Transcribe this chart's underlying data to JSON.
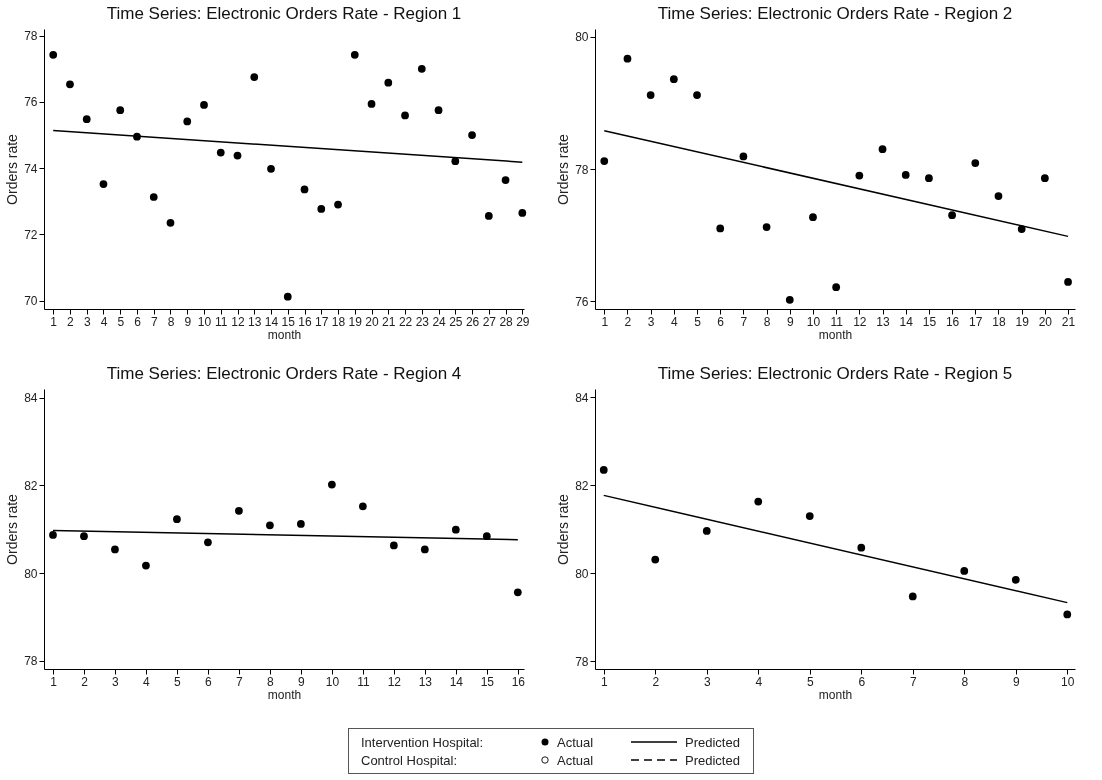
{
  "chart_data": [
    {
      "type": "scatter",
      "title": "Time Series: Electronic Orders Rate - Region 1",
      "xlabel": "month",
      "ylabel": "Orders rate",
      "x": [
        1,
        2,
        3,
        4,
        5,
        6,
        7,
        8,
        9,
        10,
        11,
        12,
        13,
        14,
        15,
        16,
        17,
        18,
        19,
        20,
        21,
        22,
        23,
        24,
        25,
        26,
        27,
        28,
        29
      ],
      "xlim": [
        0.45,
        29.1
      ],
      "xticks": [
        1,
        2,
        3,
        4,
        5,
        6,
        7,
        8,
        9,
        10,
        11,
        12,
        13,
        14,
        15,
        16,
        17,
        18,
        19,
        20,
        21,
        22,
        23,
        24,
        25,
        26,
        27,
        28,
        29
      ],
      "ylim": [
        69.75,
        78.2
      ],
      "yticks": [
        70,
        72,
        74,
        76,
        78
      ],
      "series": [
        {
          "color": "#000000",
          "marker": "circle",
          "values": [
            77.42,
            76.53,
            75.48,
            73.52,
            75.75,
            74.95,
            73.13,
            72.35,
            75.41,
            75.91,
            74.47,
            74.38,
            76.75,
            73.98,
            70.12,
            73.36,
            72.77,
            72.9,
            77.42,
            75.94,
            76.58,
            75.59,
            77.0,
            75.75,
            74.21,
            75.0,
            72.56,
            73.64,
            72.65
          ]
        },
        {
          "type": "line",
          "color": "#000000",
          "line_style": "solid",
          "x": [
            1,
            29
          ],
          "values": [
            75.14,
            74.18
          ]
        }
      ]
    },
    {
      "type": "scatter",
      "title": "Time Series: Electronic Orders Rate - Region 2",
      "xlabel": "month",
      "ylabel": "Orders rate",
      "x": [
        1,
        2,
        3,
        4,
        5,
        6,
        7,
        8,
        9,
        10,
        11,
        12,
        13,
        14,
        15,
        16,
        17,
        18,
        19,
        20,
        21
      ],
      "xlim": [
        0.6,
        21.3
      ],
      "xticks": [
        1,
        2,
        3,
        4,
        5,
        6,
        7,
        8,
        9,
        10,
        11,
        12,
        13,
        14,
        15,
        16,
        17,
        18,
        19,
        20,
        21
      ],
      "ylim": [
        75.88,
        80.12
      ],
      "yticks": [
        76,
        78,
        80
      ],
      "series": [
        {
          "color": "#000000",
          "marker": "circle",
          "values": [
            78.12,
            79.67,
            79.12,
            79.36,
            79.12,
            77.1,
            78.19,
            77.12,
            76.02,
            77.27,
            76.21,
            77.9,
            78.3,
            77.91,
            77.86,
            77.3,
            78.09,
            77.59,
            77.09,
            77.86,
            76.29
          ]
        },
        {
          "type": "line",
          "color": "#000000",
          "line_style": "solid",
          "x": [
            1,
            21
          ],
          "values": [
            78.58,
            76.98
          ]
        }
      ]
    },
    {
      "type": "scatter",
      "title": "Time Series: Electronic Orders Rate - Region 4",
      "xlabel": "month",
      "ylabel": "Orders rate",
      "x": [
        1,
        2,
        3,
        4,
        5,
        6,
        7,
        8,
        9,
        10,
        11,
        12,
        13,
        14,
        15,
        16
      ],
      "xlim": [
        0.71,
        16.2
      ],
      "xticks": [
        1,
        2,
        3,
        4,
        5,
        6,
        7,
        8,
        9,
        10,
        11,
        12,
        13,
        14,
        15,
        16
      ],
      "ylim": [
        77.81,
        84.2
      ],
      "yticks": [
        78,
        80,
        82,
        84
      ],
      "series": [
        {
          "color": "#000000",
          "marker": "circle",
          "values": [
            80.87,
            80.84,
            80.54,
            80.17,
            81.23,
            80.7,
            81.42,
            81.09,
            81.12,
            82.02,
            81.52,
            80.63,
            80.54,
            80.99,
            80.84,
            79.56
          ]
        },
        {
          "type": "line",
          "color": "#000000",
          "line_style": "solid",
          "x": [
            1,
            16
          ],
          "values": [
            80.97,
            80.76
          ]
        }
      ]
    },
    {
      "type": "scatter",
      "title": "Time Series: Electronic Orders Rate - Region 5",
      "xlabel": "month",
      "ylabel": "Orders rate",
      "x": [
        1,
        2,
        3,
        4,
        5,
        6,
        7,
        8,
        9,
        10
      ],
      "xlim": [
        0.83,
        10.15
      ],
      "xticks": [
        1,
        2,
        3,
        4,
        5,
        6,
        7,
        8,
        9,
        10
      ],
      "ylim": [
        77.82,
        84.19
      ],
      "yticks": [
        78,
        80,
        82,
        84
      ],
      "series": [
        {
          "color": "#000000",
          "marker": "circle",
          "values": [
            82.35,
            80.31,
            80.96,
            81.63,
            81.3,
            80.58,
            79.47,
            80.05,
            79.85,
            79.06
          ]
        },
        {
          "type": "line",
          "color": "#000000",
          "line_style": "solid",
          "x": [
            1,
            10
          ],
          "values": [
            81.77,
            79.33
          ]
        }
      ]
    },
    {
      "type": "other",
      "annotations": [
        "Intervention Hospital:",
        "Actual",
        "Predicted",
        "Control Hospital:",
        "Actual",
        "Predicted"
      ]
    }
  ]
}
